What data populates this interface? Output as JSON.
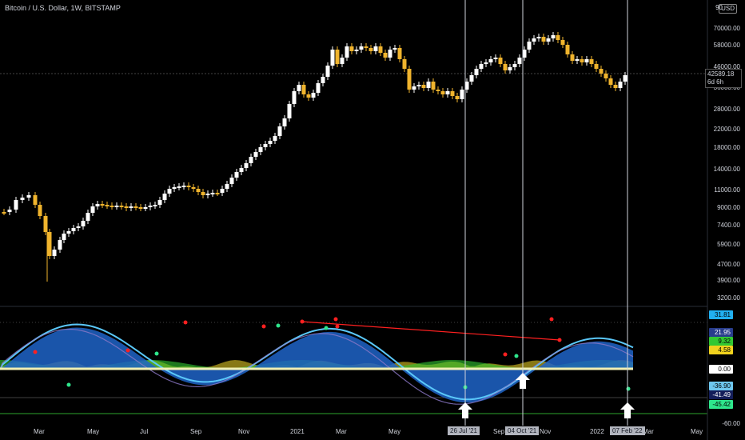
{
  "header": {
    "title": "Bitcoin / U.S. Dollar, 1W, BITSTAMP",
    "currency": "USD",
    "scale_top": "90"
  },
  "price_axis": [
    "70000.00",
    "58000.00",
    "46000.00",
    "36000.00",
    "28000.00",
    "22000.00",
    "18000.00",
    "14000.00",
    "11000.00",
    "9000.00",
    "7400.00",
    "5900.00",
    "4700.00",
    "3900.00",
    "3200.00"
  ],
  "last_price": {
    "value": "42589.18",
    "countdown": "6d 6h"
  },
  "osc_axis": {
    "badges": [
      {
        "text": "31.81",
        "color": "#21b0f0"
      },
      {
        "text": "21.95",
        "color": "#283c8c"
      },
      {
        "text": "9.32",
        "color": "#32c832"
      },
      {
        "text": "4.58",
        "color": "#f0d21e"
      },
      {
        "text": "0.00",
        "color": "#ffffff"
      },
      {
        "text": "-36.90",
        "color": "#6ec8f0"
      },
      {
        "text": "-41.49",
        "color": "#141e5a"
      },
      {
        "text": "-45.42",
        "color": "#2ee68c"
      }
    ],
    "bottom_label": "-60.00"
  },
  "time_axis": [
    "Mar",
    "May",
    "Jul",
    "Sep",
    "Nov",
    "2021",
    "Mar",
    "May",
    "Sep",
    "Nov",
    "2022",
    "Mar",
    "May"
  ],
  "date_tags": [
    "26 Jul '21",
    "04 Oct '21",
    "07 Feb '22"
  ],
  "colors": {
    "bull": "#ffffff",
    "bear": "#f0b42d",
    "wave": "#1e64c8",
    "wave_line": "#5ac8fa",
    "signal_red": "#ff0000",
    "signal_green": "#2ee68c"
  },
  "icons": [
    "up-arrow-icon"
  ]
}
